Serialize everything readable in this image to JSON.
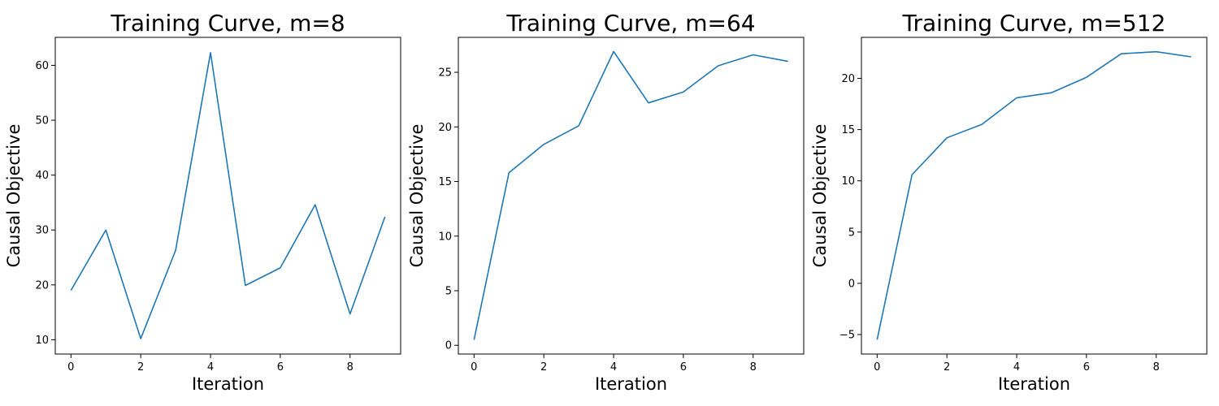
{
  "chart_data": [
    {
      "type": "line",
      "title": "Training Curve, m=8",
      "xlabel": "Iteration",
      "ylabel": "Causal Objective",
      "x": [
        0,
        1,
        2,
        3,
        4,
        5,
        6,
        7,
        8,
        9
      ],
      "series": [
        {
          "values": [
            19.0,
            30.0,
            10.2,
            26.3,
            62.3,
            19.9,
            23.1,
            34.6,
            14.7,
            32.4
          ]
        }
      ],
      "xlim": [
        -0.45,
        9.45
      ],
      "ylim": [
        7.4,
        65.1
      ],
      "xticks": [
        0,
        2,
        4,
        6,
        8
      ],
      "yticks": [
        10,
        20,
        30,
        40,
        50,
        60
      ],
      "grid": false,
      "color": "#1f77b4"
    },
    {
      "type": "line",
      "title": "Training Curve, m=64",
      "xlabel": "Iteration",
      "ylabel": "Causal Objective",
      "x": [
        0,
        1,
        2,
        3,
        4,
        5,
        6,
        7,
        8,
        9
      ],
      "series": [
        {
          "values": [
            0.5,
            15.8,
            18.4,
            20.1,
            26.9,
            22.2,
            23.2,
            25.6,
            26.6,
            26.0
          ]
        }
      ],
      "xlim": [
        -0.45,
        9.45
      ],
      "ylim": [
        -0.8,
        28.2
      ],
      "xticks": [
        0,
        2,
        4,
        6,
        8
      ],
      "yticks": [
        0,
        5,
        10,
        15,
        20,
        25
      ],
      "grid": false,
      "color": "#1f77b4"
    },
    {
      "type": "line",
      "title": "Training Curve, m=512",
      "xlabel": "Iteration",
      "ylabel": "Causal Objective",
      "x": [
        0,
        1,
        2,
        3,
        4,
        5,
        6,
        7,
        8,
        9
      ],
      "series": [
        {
          "values": [
            -5.5,
            10.6,
            14.2,
            15.5,
            18.1,
            18.6,
            20.1,
            22.4,
            22.6,
            22.1
          ]
        }
      ],
      "xlim": [
        -0.45,
        9.45
      ],
      "ylim": [
        -6.9,
        24.0
      ],
      "xticks": [
        0,
        2,
        4,
        6,
        8
      ],
      "yticks": [
        -5,
        0,
        5,
        10,
        15,
        20
      ],
      "grid": false,
      "color": "#1f77b4"
    }
  ]
}
